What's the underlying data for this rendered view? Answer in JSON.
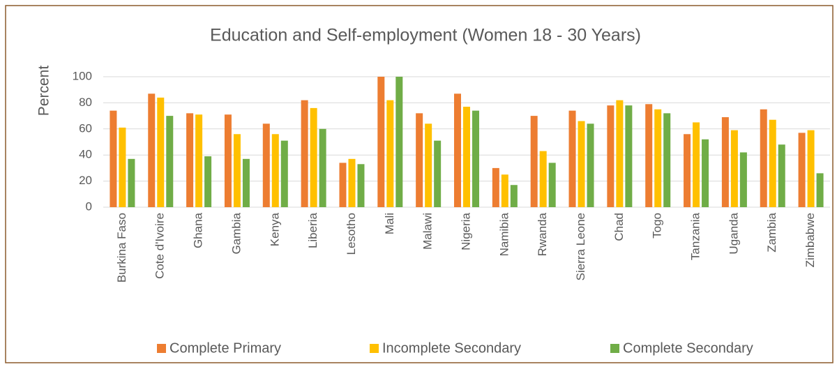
{
  "chart_data": {
    "type": "bar",
    "title": "Education and Self-employment (Women 18 - 30 Years)",
    "y_label": "Percent",
    "categories": [
      "Burkina Faso",
      "Cote d'Ivoire",
      "Ghana",
      "Gambia",
      "Kenya",
      "Liberia",
      "Lesotho",
      "Mali",
      "Malawi",
      "Nigeria",
      "Namibia",
      "Rwanda",
      "Sierra Leone",
      "Chad",
      "Togo",
      "Tanzania",
      "Uganda",
      "Zambia",
      "Zimbabwe"
    ],
    "series": [
      {
        "name": "Complete Primary",
        "color": "#ED7D31",
        "values": [
          74,
          87,
          72,
          71,
          64,
          82,
          34,
          100,
          72,
          87,
          30,
          70,
          74,
          78,
          79,
          56,
          69,
          75,
          57
        ]
      },
      {
        "name": "Incomplete Secondary",
        "color": "#FFC000",
        "values": [
          61,
          84,
          71,
          56,
          56,
          76,
          37,
          82,
          64,
          77,
          25,
          43,
          66,
          82,
          75,
          65,
          59,
          67,
          59
        ]
      },
      {
        "name": "Complete Secondary",
        "color": "#70AD47",
        "values": [
          37,
          70,
          39,
          37,
          51,
          60,
          33,
          100,
          51,
          74,
          17,
          34,
          64,
          78,
          72,
          52,
          42,
          48,
          26
        ]
      }
    ],
    "ylim": [
      0,
      100
    ],
    "yticks": [
      0,
      20,
      40,
      60,
      80,
      100
    ],
    "grid": true,
    "legend": "bottom"
  }
}
